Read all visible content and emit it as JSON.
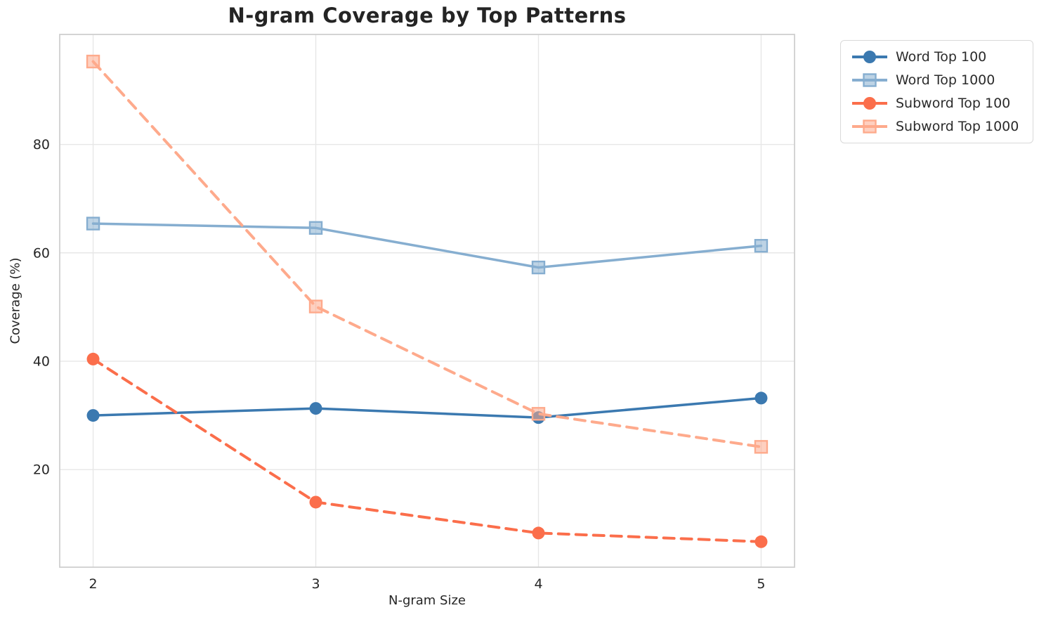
{
  "chart_data": {
    "type": "line",
    "title": "N-gram Coverage by Top Patterns",
    "xlabel": "N-gram Size",
    "ylabel": "Coverage (%)",
    "x": [
      2,
      3,
      4,
      5
    ],
    "xticks": [
      "2",
      "3",
      "4",
      "5"
    ],
    "yticks": [
      20,
      40,
      60,
      80
    ],
    "xlim": [
      1.85,
      5.15
    ],
    "ylim": [
      2.0,
      100.3
    ],
    "grid": true,
    "legend_position": "upper-right outside axes",
    "series": [
      {
        "name": "Word Top 100",
        "values": [
          30.0,
          31.3,
          29.6,
          33.2
        ],
        "color": "#3b79b0",
        "linestyle": "solid",
        "marker": "circle"
      },
      {
        "name": "Word Top 1000",
        "values": [
          65.4,
          64.6,
          57.3,
          61.3
        ],
        "color": "#86aed0",
        "linestyle": "solid",
        "marker": "square"
      },
      {
        "name": "Subword Top 100",
        "values": [
          40.4,
          14.0,
          8.3,
          6.7
        ],
        "color": "#fb6e4b",
        "linestyle": "dashed",
        "marker": "circle"
      },
      {
        "name": "Subword Top 1000",
        "values": [
          95.3,
          50.1,
          30.3,
          24.2
        ],
        "color": "#feaa8c",
        "linestyle": "dashed",
        "marker": "square"
      }
    ]
  },
  "style": {
    "background": "#ffffff",
    "grid_color": "#e7e7e7",
    "spine_color": "#cfcfcf",
    "text_color": "#262626",
    "title_color": "#242424"
  }
}
